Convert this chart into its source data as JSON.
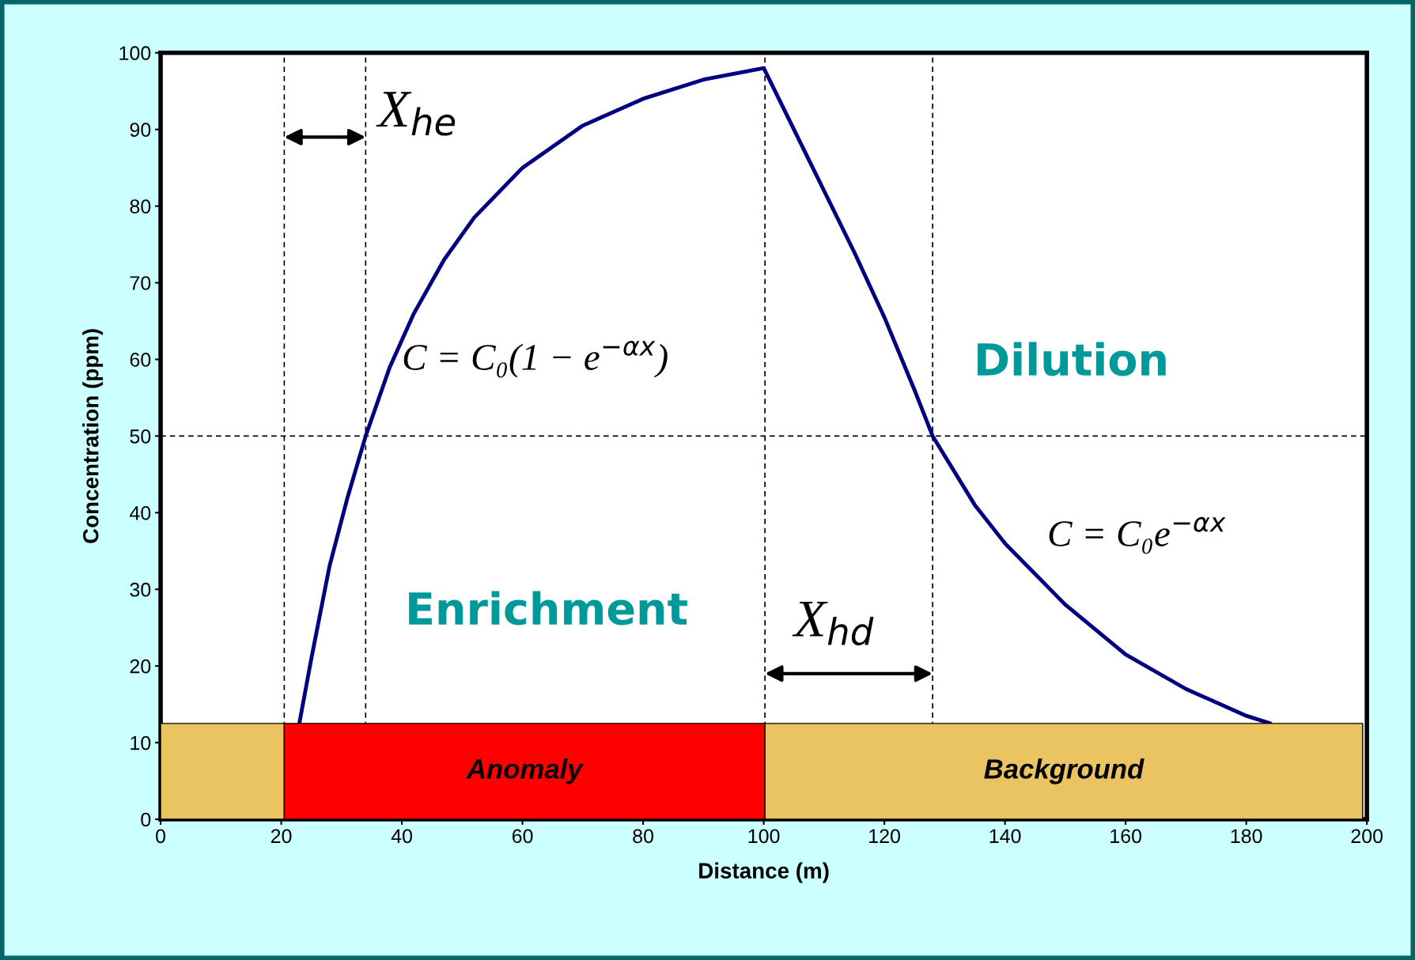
{
  "chart_data": {
    "type": "line",
    "xlabel": "Distance (m)",
    "ylabel": "Concentration (ppm)",
    "xlim": [
      0,
      200
    ],
    "ylim": [
      0,
      100
    ],
    "xticks": [
      0,
      20,
      40,
      60,
      80,
      100,
      120,
      140,
      160,
      180,
      200
    ],
    "yticks": [
      0,
      10,
      20,
      30,
      40,
      50,
      60,
      70,
      80,
      90,
      100
    ],
    "grid": false,
    "series": [
      {
        "color": "#000080",
        "x": [
          23,
          25,
          28,
          31,
          34,
          38,
          42,
          47,
          52,
          60,
          70,
          80,
          90,
          100,
          105,
          110,
          115,
          120,
          125,
          128,
          135,
          140,
          150,
          160,
          170,
          180,
          184
        ],
        "values": [
          12.5,
          21,
          33,
          42,
          50,
          59,
          66,
          73,
          78.5,
          85,
          90.5,
          94,
          96.5,
          98,
          90,
          82,
          74,
          65.5,
          56,
          50,
          41,
          36,
          28,
          21.5,
          17,
          13.5,
          12.5
        ]
      },
      {
        "type": "area",
        "color": "#ebc462",
        "x": [
          0,
          20.5
        ],
        "values": [
          12.5,
          12.5
        ]
      },
      {
        "type": "area",
        "name": "Anomaly",
        "color": "#ff0000",
        "x": [
          20.5,
          100.2
        ],
        "values": [
          12.5,
          12.5
        ]
      },
      {
        "type": "area",
        "name": "Background",
        "color": "#ebc462",
        "x": [
          100.2,
          199.3
        ],
        "values": [
          12.5,
          12.5
        ]
      }
    ],
    "ref_lines": [
      {
        "axis": "x",
        "value": 20.5,
        "color": "#000000",
        "line_style": "dashed"
      },
      {
        "axis": "x",
        "value": 34,
        "color": "#000000",
        "line_style": "dashed"
      },
      {
        "axis": "x",
        "value": 100.2,
        "color": "#000000",
        "line_style": "dashed"
      },
      {
        "axis": "x",
        "value": 128,
        "color": "#000000",
        "line_style": "dashed"
      },
      {
        "axis": "y",
        "value": 50,
        "color": "#000000",
        "line_style": "dashed"
      }
    ],
    "annotations": [
      "X$_{he}$",
      "X$_{hd}$",
      "C = C₀(1 − e$^{−αx}$)",
      "C = C₀e$^{−αx}$",
      "Enrichment",
      "Dilution"
    ]
  }
}
